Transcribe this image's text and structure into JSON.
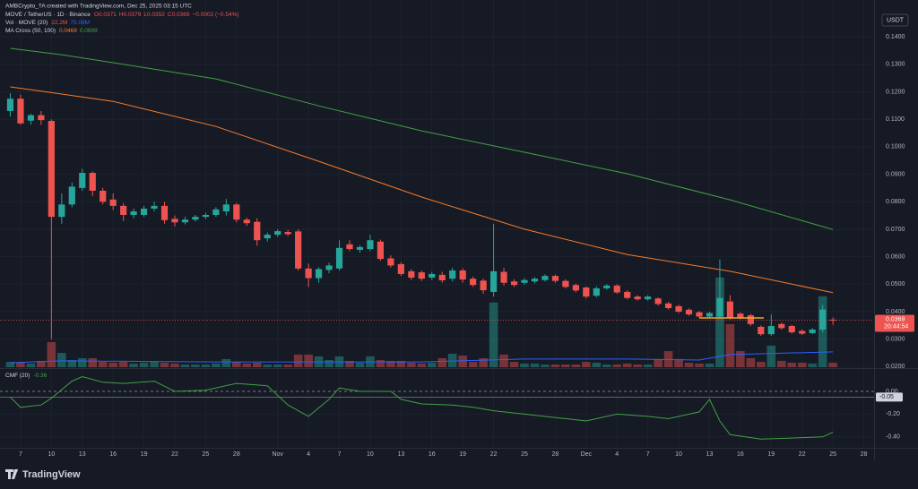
{
  "chart_data": [
    {
      "type": "candlestick",
      "subtitle": "AMBCrypto_TA created with TradingView.com, Dec 25, 2025 03:15 UTC",
      "title": "MOVE / TetherUS · 1D · Binance",
      "quote": [
        "O0.0371",
        "H0.0379",
        "L0.0352",
        "C0.0369",
        "−0.0002 (−0.54%)"
      ],
      "currency": "USDT",
      "countdown": "20:44:54",
      "logo": "TradingView",
      "up_color": "#26a69a",
      "down_color": "#ef5350",
      "grid": true,
      "x": [
        "2025-10-06",
        "2025-10-07",
        "2025-10-08",
        "2025-10-09",
        "2025-10-10",
        "2025-10-11",
        "2025-10-12",
        "2025-10-13",
        "2025-10-14",
        "2025-10-15",
        "2025-10-16",
        "2025-10-17",
        "2025-10-18",
        "2025-10-19",
        "2025-10-20",
        "2025-10-21",
        "2025-10-22",
        "2025-10-23",
        "2025-10-24",
        "2025-10-25",
        "2025-10-26",
        "2025-10-27",
        "2025-10-28",
        "2025-10-29",
        "2025-10-30",
        "2025-10-31",
        "2025-11-01",
        "2025-11-02",
        "2025-11-03",
        "2025-11-04",
        "2025-11-05",
        "2025-11-06",
        "2025-11-07",
        "2025-11-08",
        "2025-11-09",
        "2025-11-10",
        "2025-11-11",
        "2025-11-12",
        "2025-11-13",
        "2025-11-14",
        "2025-11-15",
        "2025-11-16",
        "2025-11-17",
        "2025-11-18",
        "2025-11-19",
        "2025-11-20",
        "2025-11-21",
        "2025-11-22",
        "2025-11-23",
        "2025-11-24",
        "2025-11-25",
        "2025-11-26",
        "2025-11-27",
        "2025-11-28",
        "2025-11-29",
        "2025-11-30",
        "2025-12-01",
        "2025-12-02",
        "2025-12-03",
        "2025-12-04",
        "2025-12-05",
        "2025-12-06",
        "2025-12-07",
        "2025-12-08",
        "2025-12-09",
        "2025-12-10",
        "2025-12-11",
        "2025-12-12",
        "2025-12-13",
        "2025-12-14",
        "2025-12-15",
        "2025-12-16",
        "2025-12-17",
        "2025-12-18",
        "2025-12-19",
        "2025-12-20",
        "2025-12-21",
        "2025-12-22",
        "2025-12-23",
        "2025-12-24",
        "2025-12-25"
      ],
      "open": [
        0.113,
        0.1175,
        0.1095,
        0.1115,
        0.1094,
        0.0745,
        0.079,
        0.085,
        0.0905,
        0.084,
        0.0808,
        0.0785,
        0.0752,
        0.0752,
        0.0775,
        0.0785,
        0.0738,
        0.0725,
        0.0735,
        0.0745,
        0.0752,
        0.0765,
        0.079,
        0.0735,
        0.0727,
        0.0667,
        0.068,
        0.069,
        0.0692,
        0.0557,
        0.0522,
        0.0552,
        0.0557,
        0.0645,
        0.0625,
        0.0628,
        0.0655,
        0.0594,
        0.0573,
        0.0547,
        0.0543,
        0.0524,
        0.0534,
        0.052,
        0.055,
        0.052,
        0.0513,
        0.0472,
        0.0545,
        0.051,
        0.0505,
        0.051,
        0.0515,
        0.053,
        0.0512,
        0.0497,
        0.0488,
        0.0458,
        0.0485,
        0.0495,
        0.0472,
        0.0455,
        0.0445,
        0.0448,
        0.043,
        0.042,
        0.0407,
        0.0398,
        0.0382,
        0.0382,
        0.0437,
        0.0393,
        0.0387,
        0.0345,
        0.0318,
        0.0355,
        0.0348,
        0.033,
        0.0322,
        0.0335,
        0.0371
      ],
      "high": [
        0.1195,
        0.119,
        0.112,
        0.113,
        0.11,
        0.083,
        0.087,
        0.092,
        0.091,
        0.085,
        0.083,
        0.0795,
        0.0775,
        0.0785,
        0.08,
        0.08,
        0.075,
        0.0745,
        0.0752,
        0.076,
        0.078,
        0.081,
        0.0795,
        0.0742,
        0.074,
        0.0688,
        0.07,
        0.0698,
        0.07,
        0.0575,
        0.0562,
        0.0578,
        0.066,
        0.066,
        0.0642,
        0.068,
        0.0662,
        0.0605,
        0.058,
        0.0555,
        0.055,
        0.0545,
        0.0545,
        0.056,
        0.0558,
        0.0528,
        0.052,
        0.072,
        0.056,
        0.0518,
        0.0522,
        0.0526,
        0.0536,
        0.0535,
        0.0518,
        0.0502,
        0.0492,
        0.0492,
        0.05,
        0.05,
        0.0478,
        0.046,
        0.046,
        0.0452,
        0.0435,
        0.0425,
        0.0412,
        0.0402,
        0.04,
        0.059,
        0.046,
        0.0398,
        0.0392,
        0.035,
        0.039,
        0.036,
        0.0352,
        0.0335,
        0.034,
        0.0425,
        0.0379
      ],
      "low": [
        0.111,
        0.108,
        0.108,
        0.108,
        0.03,
        0.072,
        0.078,
        0.084,
        0.082,
        0.079,
        0.077,
        0.073,
        0.074,
        0.0745,
        0.0765,
        0.072,
        0.071,
        0.0718,
        0.0728,
        0.0738,
        0.0745,
        0.075,
        0.0725,
        0.0712,
        0.064,
        0.0655,
        0.0672,
        0.0675,
        0.055,
        0.049,
        0.0505,
        0.054,
        0.055,
        0.062,
        0.0615,
        0.062,
        0.0585,
        0.056,
        0.053,
        0.0515,
        0.0512,
        0.0515,
        0.0505,
        0.051,
        0.0505,
        0.049,
        0.0465,
        0.0455,
        0.0495,
        0.049,
        0.0498,
        0.0503,
        0.051,
        0.0505,
        0.0485,
        0.047,
        0.0448,
        0.0452,
        0.048,
        0.0465,
        0.0445,
        0.044,
        0.044,
        0.0422,
        0.0408,
        0.0395,
        0.0385,
        0.0378,
        0.0378,
        0.0375,
        0.0372,
        0.0372,
        0.0348,
        0.0312,
        0.0312,
        0.0335,
        0.032,
        0.0315,
        0.0318,
        0.0325,
        0.0352
      ],
      "close": [
        0.1175,
        0.1085,
        0.1115,
        0.1097,
        0.0745,
        0.079,
        0.0855,
        0.0905,
        0.084,
        0.08,
        0.0785,
        0.0752,
        0.0765,
        0.0775,
        0.0785,
        0.0733,
        0.0725,
        0.0735,
        0.0745,
        0.0752,
        0.0772,
        0.079,
        0.0735,
        0.0722,
        0.066,
        0.068,
        0.0693,
        0.0682,
        0.0557,
        0.0522,
        0.0555,
        0.0568,
        0.0632,
        0.0628,
        0.0635,
        0.066,
        0.0592,
        0.0568,
        0.0537,
        0.0524,
        0.052,
        0.0537,
        0.0514,
        0.055,
        0.0517,
        0.0497,
        0.0478,
        0.0547,
        0.0505,
        0.0497,
        0.0515,
        0.052,
        0.053,
        0.0512,
        0.049,
        0.0477,
        0.0455,
        0.0485,
        0.0495,
        0.047,
        0.045,
        0.0445,
        0.0455,
        0.0428,
        0.0413,
        0.04,
        0.039,
        0.0382,
        0.0395,
        0.045,
        0.0378,
        0.0378,
        0.0355,
        0.0318,
        0.0348,
        0.034,
        0.0325,
        0.032,
        0.0335,
        0.0408,
        0.0369
      ],
      "xlim": [
        "2025-10-05",
        "2025-12-29"
      ],
      "xticks": [
        {
          "value": "2025-10-07",
          "label": "7"
        },
        {
          "value": "2025-10-10",
          "label": "10"
        },
        {
          "value": "2025-10-13",
          "label": "13"
        },
        {
          "value": "2025-10-16",
          "label": "16"
        },
        {
          "value": "2025-10-19",
          "label": "19"
        },
        {
          "value": "2025-10-22",
          "label": "22"
        },
        {
          "value": "2025-10-25",
          "label": "25"
        },
        {
          "value": "2025-10-28",
          "label": "28"
        },
        {
          "value": "2025-11-01",
          "label": "Nov"
        },
        {
          "value": "2025-11-04",
          "label": "4"
        },
        {
          "value": "2025-11-07",
          "label": "7"
        },
        {
          "value": "2025-11-10",
          "label": "10"
        },
        {
          "value": "2025-11-13",
          "label": "13"
        },
        {
          "value": "2025-11-16",
          "label": "16"
        },
        {
          "value": "2025-11-19",
          "label": "19"
        },
        {
          "value": "2025-11-22",
          "label": "22"
        },
        {
          "value": "2025-11-25",
          "label": "25"
        },
        {
          "value": "2025-11-28",
          "label": "28"
        },
        {
          "value": "2025-12-01",
          "label": "Dec"
        },
        {
          "value": "2025-12-04",
          "label": "4"
        },
        {
          "value": "2025-12-07",
          "label": "7"
        },
        {
          "value": "2025-12-10",
          "label": "10"
        },
        {
          "value": "2025-12-13",
          "label": "13"
        },
        {
          "value": "2025-12-16",
          "label": "16"
        },
        {
          "value": "2025-12-19",
          "label": "19"
        },
        {
          "value": "2025-12-22",
          "label": "22"
        },
        {
          "value": "2025-12-25",
          "label": "25"
        },
        {
          "value": "2025-12-28",
          "label": "28"
        }
      ],
      "ylim": [
        0.0198,
        0.1534
      ],
      "yticks": [
        {
          "value": 0.14,
          "label": "0.1400"
        },
        {
          "value": 0.13,
          "label": "0.1300"
        },
        {
          "value": 0.12,
          "label": "0.1200"
        },
        {
          "value": 0.11,
          "label": "0.1100"
        },
        {
          "value": 0.1,
          "label": "0.1000"
        },
        {
          "value": 0.09,
          "label": "0.0900"
        },
        {
          "value": 0.08,
          "label": "0.0800"
        },
        {
          "value": 0.07,
          "label": "0.0700"
        },
        {
          "value": 0.06,
          "label": "0.0600"
        },
        {
          "value": 0.05,
          "label": "0.0500"
        },
        {
          "value": 0.04,
          "label": "0.0400"
        },
        {
          "value": 0.03,
          "label": "0.0300"
        },
        {
          "value": 0.02,
          "label": "0.0200"
        }
      ],
      "y2lim": [
        0,
        1800
      ],
      "volume": {
        "name": "Vol · MOVE (20)",
        "axis": "y2",
        "legend": [
          "22.2M",
          "75.08M"
        ],
        "values": [
          26,
          22,
          18,
          31,
          123,
          70,
          35,
          44,
          44,
          26,
          22,
          26,
          18,
          22,
          26,
          22,
          18,
          13,
          13,
          13,
          18,
          40,
          26,
          18,
          22,
          13,
          13,
          13,
          62,
          62,
          53,
          35,
          53,
          31,
          22,
          53,
          35,
          31,
          31,
          22,
          18,
          22,
          44,
          66,
          57,
          26,
          44,
          317,
          62,
          26,
          18,
          18,
          13,
          13,
          13,
          13,
          26,
          22,
          13,
          13,
          18,
          13,
          13,
          40,
          79,
          40,
          22,
          18,
          18,
          440,
          211,
          79,
          44,
          26,
          106,
          31,
          22,
          22,
          18,
          348,
          22.2
        ],
        "ma": {
          "color": "#2962ff",
          "x": [
            "2025-10-06",
            "2025-10-11",
            "2025-10-26",
            "2025-11-15",
            "2025-11-25",
            "2025-12-05",
            "2025-12-12",
            "2025-12-15",
            "2025-12-25"
          ],
          "values": [
            22,
            31,
            26,
            26,
            40,
            40,
            35,
            62,
            75.08
          ]
        }
      },
      "ma": {
        "name": "MA Cross (50, 100)",
        "series": [
          {
            "color": "#f57c2a",
            "x": [
              "2025-10-06",
              "2025-10-11",
              "2025-10-16",
              "2025-10-26",
              "2025-11-05",
              "2025-11-15",
              "2025-11-25",
              "2025-12-05",
              "2025-12-15",
              "2025-12-25"
            ],
            "values": [
              0.1218,
              0.1192,
              0.1165,
              0.1074,
              0.0947,
              0.0817,
              0.07,
              0.0608,
              0.0547,
              0.0469
            ]
          },
          {
            "color": "#43a047",
            "x": [
              "2025-10-06",
              "2025-10-11",
              "2025-10-16",
              "2025-10-26",
              "2025-11-05",
              "2025-11-15",
              "2025-11-25",
              "2025-12-05",
              "2025-12-15",
              "2025-12-25"
            ],
            "values": [
              0.1358,
              0.1335,
              0.1306,
              0.1247,
              0.1149,
              0.1058,
              0.098,
              0.0902,
              0.0807,
              0.0699
            ]
          }
        ]
      }
    },
    {
      "type": "line",
      "name": "CMF (20)",
      "color": "#43a047",
      "x": [
        "2025-10-06",
        "2025-10-07",
        "2025-10-09",
        "2025-10-10",
        "2025-10-12",
        "2025-10-13",
        "2025-10-15",
        "2025-10-17",
        "2025-10-20",
        "2025-10-22",
        "2025-10-25",
        "2025-10-28",
        "2025-10-31",
        "2025-11-02",
        "2025-11-04",
        "2025-11-06",
        "2025-11-07",
        "2025-11-09",
        "2025-11-12",
        "2025-11-13",
        "2025-11-15",
        "2025-11-18",
        "2025-11-20",
        "2025-11-22",
        "2025-11-25",
        "2025-11-28",
        "2025-12-01",
        "2025-12-04",
        "2025-12-07",
        "2025-12-09",
        "2025-12-12",
        "2025-12-13",
        "2025-12-14",
        "2025-12-15",
        "2025-12-18",
        "2025-12-21",
        "2025-12-24",
        "2025-12-25"
      ],
      "values": [
        -0.05,
        -0.14,
        -0.12,
        -0.06,
        0.09,
        0.13,
        0.08,
        0.07,
        0.09,
        0.0,
        0.01,
        0.07,
        0.05,
        -0.12,
        -0.22,
        -0.07,
        0.03,
        0.0,
        0.0,
        -0.07,
        -0.11,
        -0.12,
        -0.14,
        -0.17,
        -0.2,
        -0.23,
        -0.26,
        -0.2,
        -0.22,
        -0.24,
        -0.18,
        -0.07,
        -0.26,
        -0.38,
        -0.42,
        -0.41,
        -0.4,
        -0.36
      ],
      "ylim": [
        -0.496,
        0.189
      ],
      "yticks": [
        {
          "value": 0,
          "label": "0.00"
        },
        {
          "value": -0.2,
          "label": "-0.20"
        },
        {
          "value": -0.4,
          "label": "-0.40"
        }
      ],
      "level": {
        "value": -0.05,
        "label": "-0.05"
      }
    }
  ]
}
